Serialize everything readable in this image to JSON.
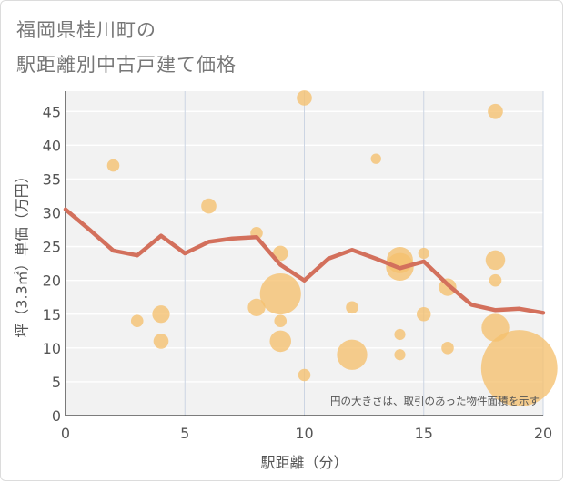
{
  "chart_data": {
    "type": "scatter",
    "title_lines": [
      "福岡県桂川町の",
      "駅距離別中古戸建て価格"
    ],
    "xlabel": "駅距離（分）",
    "ylabel": "坪（3.3㎡）単価（万円）",
    "xlim": [
      0,
      20
    ],
    "ylim": [
      0,
      48
    ],
    "x_ticks": [
      0,
      5,
      10,
      15,
      20
    ],
    "y_ticks": [
      0,
      5,
      10,
      15,
      20,
      25,
      30,
      35,
      40,
      45
    ],
    "grid": true,
    "annotation": "円の大きさは、取引のあった物件面積を示す",
    "colors": {
      "bubble": "#f5c06e",
      "line": "#d3705c",
      "grid": "#ccd5e3",
      "plot_bg": "#f2f2f2"
    },
    "series": [
      {
        "kind": "bubble",
        "points": [
          {
            "x": 2,
            "y": 37,
            "size": 1
          },
          {
            "x": 3,
            "y": 14,
            "size": 1
          },
          {
            "x": 4,
            "y": 15,
            "size": 2
          },
          {
            "x": 4,
            "y": 11,
            "size": 1.5
          },
          {
            "x": 6,
            "y": 31,
            "size": 1.5
          },
          {
            "x": 8,
            "y": 27,
            "size": 1
          },
          {
            "x": 8,
            "y": 16,
            "size": 2
          },
          {
            "x": 9,
            "y": 24,
            "size": 1.5
          },
          {
            "x": 9,
            "y": 18,
            "size": 11
          },
          {
            "x": 9,
            "y": 14,
            "size": 1
          },
          {
            "x": 9,
            "y": 11,
            "size": 3
          },
          {
            "x": 10,
            "y": 47,
            "size": 1.5
          },
          {
            "x": 10,
            "y": 6,
            "size": 1
          },
          {
            "x": 12,
            "y": 16,
            "size": 1
          },
          {
            "x": 12,
            "y": 9,
            "size": 6
          },
          {
            "x": 13,
            "y": 38,
            "size": 0.7
          },
          {
            "x": 14,
            "y": 23,
            "size": 4.5
          },
          {
            "x": 14,
            "y": 22,
            "size": 5
          },
          {
            "x": 14,
            "y": 12,
            "size": 0.8
          },
          {
            "x": 14,
            "y": 9,
            "size": 0.8
          },
          {
            "x": 15,
            "y": 24,
            "size": 0.8
          },
          {
            "x": 15,
            "y": 15,
            "size": 1.3
          },
          {
            "x": 16,
            "y": 19,
            "size": 2
          },
          {
            "x": 16,
            "y": 10,
            "size": 1
          },
          {
            "x": 18,
            "y": 45,
            "size": 1.5
          },
          {
            "x": 18,
            "y": 23,
            "size": 2.5
          },
          {
            "x": 18,
            "y": 20,
            "size": 1
          },
          {
            "x": 18,
            "y": 13,
            "size": 5
          },
          {
            "x": 19,
            "y": 7,
            "size": 38
          }
        ]
      },
      {
        "kind": "line",
        "x": [
          0,
          1,
          2,
          3,
          4,
          5,
          6,
          7,
          8,
          9,
          10,
          11,
          12,
          13,
          14,
          15,
          16,
          17,
          18,
          19,
          20
        ],
        "y": [
          30.5,
          27.5,
          24.4,
          23.7,
          26.6,
          24,
          25.7,
          26.2,
          26.4,
          22.3,
          20,
          23.2,
          24.5,
          23.2,
          21.8,
          22.8,
          19.4,
          16.4,
          15.6,
          15.8,
          15.2
        ]
      }
    ]
  }
}
